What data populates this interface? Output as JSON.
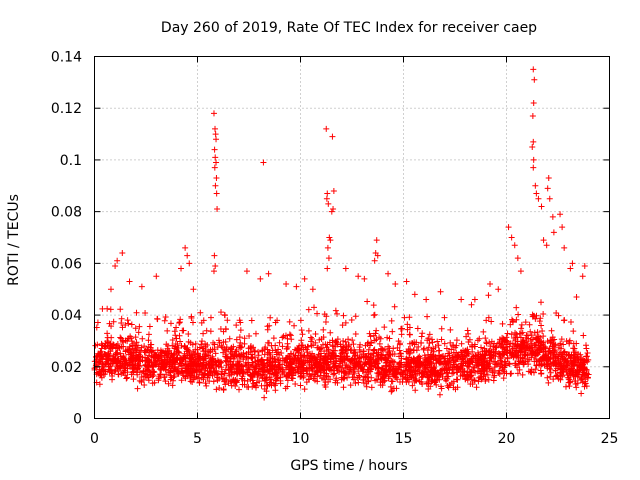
{
  "chart_data": {
    "type": "scatter",
    "title": "Day 260 of 2019, Rate Of TEC Index for receiver caep",
    "xlabel": "GPS time / hours",
    "ylabel": "ROTI / TECUs",
    "xlim": [
      0,
      25
    ],
    "ylim": [
      0,
      0.14
    ],
    "xticks": [
      0,
      5,
      10,
      15,
      20,
      25
    ],
    "yticks": [
      0,
      0.02,
      0.04,
      0.06,
      0.08,
      0.1,
      0.12,
      0.14
    ],
    "xtick_labels": [
      "0",
      "5",
      "10",
      "15",
      "20",
      "25"
    ],
    "ytick_labels": [
      "0",
      "0.02",
      "0.04",
      "0.06",
      "0.08",
      "0.1",
      "0.12",
      "0.14"
    ],
    "grid": true,
    "marker": "+",
    "color": "#ff0000",
    "series": [
      {
        "name": "ROTI",
        "points": [
          [
            5.8,
            0.118
          ],
          [
            5.85,
            0.112
          ],
          [
            5.88,
            0.11
          ],
          [
            5.9,
            0.108
          ],
          [
            5.83,
            0.104
          ],
          [
            5.86,
            0.101
          ],
          [
            5.9,
            0.099
          ],
          [
            5.84,
            0.097
          ],
          [
            5.92,
            0.093
          ],
          [
            5.87,
            0.09
          ],
          [
            5.93,
            0.087
          ],
          [
            5.95,
            0.081
          ],
          [
            5.82,
            0.063
          ],
          [
            5.86,
            0.059
          ],
          [
            5.8,
            0.057
          ],
          [
            8.2,
            0.099
          ],
          [
            11.25,
            0.112
          ],
          [
            11.55,
            0.109
          ],
          [
            11.3,
            0.087
          ],
          [
            11.28,
            0.085
          ],
          [
            11.35,
            0.083
          ],
          [
            11.62,
            0.088
          ],
          [
            11.58,
            0.081
          ],
          [
            11.52,
            0.08
          ],
          [
            11.4,
            0.07
          ],
          [
            11.45,
            0.069
          ],
          [
            11.33,
            0.066
          ],
          [
            11.38,
            0.062
          ],
          [
            11.3,
            0.058
          ],
          [
            13.7,
            0.069
          ],
          [
            13.65,
            0.064
          ],
          [
            13.75,
            0.063
          ],
          [
            13.6,
            0.061
          ],
          [
            21.3,
            0.135
          ],
          [
            21.35,
            0.131
          ],
          [
            21.32,
            0.122
          ],
          [
            21.28,
            0.117
          ],
          [
            21.3,
            0.107
          ],
          [
            21.25,
            0.105
          ],
          [
            21.32,
            0.1
          ],
          [
            21.3,
            0.097
          ],
          [
            21.4,
            0.09
          ],
          [
            21.45,
            0.087
          ],
          [
            21.55,
            0.085
          ],
          [
            21.7,
            0.082
          ],
          [
            22.05,
            0.093
          ],
          [
            22.0,
            0.089
          ],
          [
            22.1,
            0.085
          ],
          [
            22.25,
            0.078
          ],
          [
            22.6,
            0.079
          ],
          [
            22.7,
            0.074
          ],
          [
            20.1,
            0.074
          ],
          [
            20.25,
            0.07
          ],
          [
            20.4,
            0.067
          ],
          [
            20.55,
            0.062
          ],
          [
            21.8,
            0.069
          ],
          [
            21.95,
            0.067
          ],
          [
            22.3,
            0.072
          ],
          [
            22.8,
            0.066
          ],
          [
            23.2,
            0.06
          ],
          [
            23.8,
            0.059
          ],
          [
            23.7,
            0.055
          ],
          [
            0.8,
            0.05
          ],
          [
            1.0,
            0.059
          ],
          [
            1.1,
            0.061
          ],
          [
            1.35,
            0.064
          ],
          [
            1.7,
            0.053
          ],
          [
            2.3,
            0.051
          ],
          [
            3.0,
            0.055
          ],
          [
            4.2,
            0.058
          ],
          [
            4.4,
            0.066
          ],
          [
            4.5,
            0.063
          ],
          [
            4.6,
            0.06
          ],
          [
            4.8,
            0.05
          ],
          [
            7.4,
            0.057
          ],
          [
            8.05,
            0.054
          ],
          [
            8.45,
            0.056
          ],
          [
            9.3,
            0.052
          ],
          [
            9.8,
            0.051
          ],
          [
            10.2,
            0.054
          ],
          [
            10.6,
            0.05
          ],
          [
            12.2,
            0.058
          ],
          [
            12.8,
            0.055
          ],
          [
            13.1,
            0.054
          ],
          [
            14.25,
            0.056
          ],
          [
            14.6,
            0.052
          ],
          [
            15.15,
            0.053
          ],
          [
            15.55,
            0.048
          ],
          [
            16.1,
            0.046
          ],
          [
            16.8,
            0.049
          ],
          [
            17.8,
            0.046
          ],
          [
            18.3,
            0.044
          ],
          [
            19.2,
            0.052
          ],
          [
            19.6,
            0.05
          ],
          [
            20.7,
            0.057
          ],
          [
            23.1,
            0.058
          ],
          [
            23.4,
            0.047
          ]
        ]
      }
    ],
    "dense_band": {
      "description": "dense continuous cloud of points across the full time range",
      "x_range": [
        0,
        24
      ],
      "base_values": [
        [
          0,
          0.022
        ],
        [
          1,
          0.023
        ],
        [
          2,
          0.022
        ],
        [
          3,
          0.021
        ],
        [
          4,
          0.022
        ],
        [
          5,
          0.021
        ],
        [
          6,
          0.02
        ],
        [
          7,
          0.02
        ],
        [
          8,
          0.019
        ],
        [
          9,
          0.02
        ],
        [
          10,
          0.021
        ],
        [
          11,
          0.021
        ],
        [
          12,
          0.022
        ],
        [
          13,
          0.021
        ],
        [
          14,
          0.021
        ],
        [
          15,
          0.02
        ],
        [
          16,
          0.02
        ],
        [
          17,
          0.02
        ],
        [
          18,
          0.021
        ],
        [
          19,
          0.022
        ],
        [
          20,
          0.025
        ],
        [
          21,
          0.027
        ],
        [
          22,
          0.024
        ],
        [
          23,
          0.02
        ],
        [
          24,
          0.018
        ]
      ],
      "spread": 0.012,
      "min_value": 0.004
    }
  }
}
